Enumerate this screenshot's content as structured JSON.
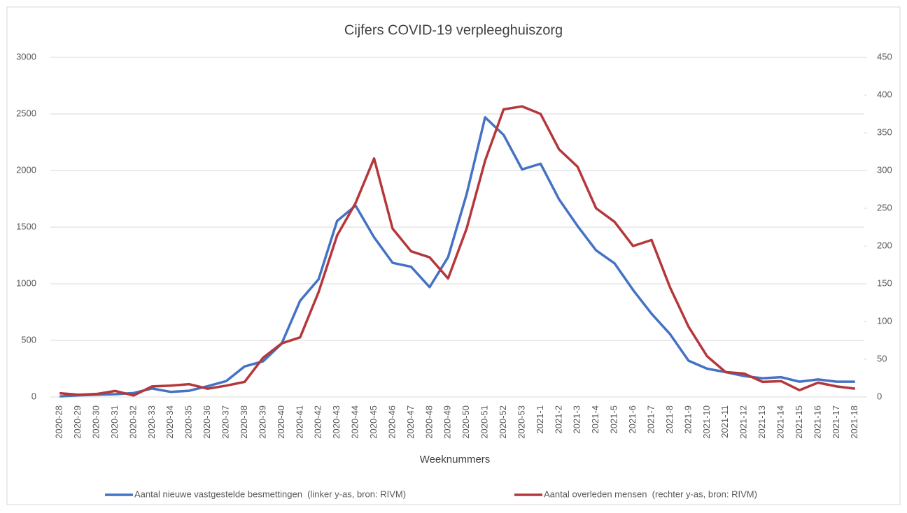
{
  "chart_data": {
    "type": "line",
    "title": "Cijfers COVID-19 verpleeghuiszorg",
    "xlabel": "Weeknummers",
    "categories": [
      "2020-28",
      "2020-29",
      "2020-30",
      "2020-31",
      "2020-32",
      "2020-33",
      "2020-34",
      "2020-35",
      "2020-36",
      "2020-37",
      "2020-38",
      "2020-39",
      "2020-40",
      "2020-41",
      "2020-42",
      "2020-43",
      "2020-44",
      "2020-45",
      "2020-46",
      "2020-47",
      "2020-48",
      "2020-49",
      "2020-50",
      "2020-51",
      "2020-52",
      "2020-53",
      "2021-1",
      "2021-2",
      "2021-3",
      "2021-4",
      "2021-5",
      "2021-6",
      "2021-7",
      "2021-8",
      "2021-9",
      "2021-10",
      "2021-11",
      "2021-12",
      "2021-13",
      "2021-14",
      "2021-15",
      "2021-16",
      "2021-17",
      "2021-18"
    ],
    "series": [
      {
        "name": "Aantal nieuwe vastgestelde besmettingen  (linker y-as, bron: RIVM)",
        "color": "#4472c4",
        "axis": "y",
        "values": [
          5,
          15,
          20,
          25,
          35,
          75,
          45,
          55,
          95,
          140,
          270,
          315,
          470,
          850,
          1040,
          1555,
          1690,
          1410,
          1185,
          1150,
          970,
          1235,
          1790,
          2470,
          2315,
          2010,
          2060,
          1745,
          1510,
          1295,
          1180,
          945,
          735,
          555,
          320,
          250,
          220,
          185,
          165,
          175,
          135,
          155,
          135,
          135
        ]
      },
      {
        "name": "Aantal overleden mensen  (rechter y-as, bron: RIVM)",
        "color": "#b5373a",
        "axis": "y2",
        "values": [
          5,
          3,
          4,
          8,
          2,
          14,
          15,
          17,
          11,
          15,
          20,
          52,
          71,
          79,
          139,
          214,
          257,
          316,
          223,
          193,
          185,
          157,
          223,
          313,
          381,
          385,
          375,
          328,
          305,
          250,
          232,
          200,
          208,
          145,
          93,
          54,
          33,
          31,
          20,
          21,
          9,
          19,
          14,
          11
        ]
      }
    ],
    "ylim": [
      0,
      3000
    ],
    "yticks": [
      0,
      500,
      1000,
      1500,
      2000,
      2500,
      3000
    ],
    "y2lim": [
      0,
      450
    ],
    "y2ticks": [
      0,
      50,
      100,
      150,
      200,
      250,
      300,
      350,
      400,
      450
    ],
    "grid": true,
    "legend": "bottom"
  }
}
